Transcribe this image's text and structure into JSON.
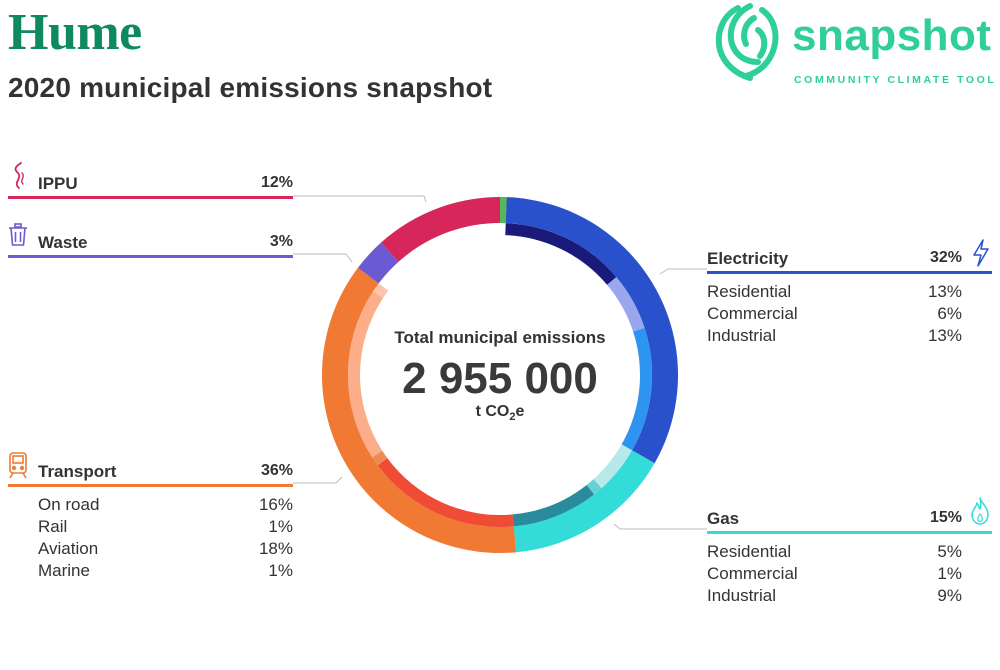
{
  "header": {
    "region": "Hume",
    "subtitle": "2020 municipal emissions snapshot"
  },
  "logo": {
    "word": "snapshot",
    "tagline": "COMMUNITY CLIMATE TOOL",
    "icon": "snapshot-swirl-logo",
    "color": "#2ecf9a"
  },
  "center": {
    "label": "Total municipal emissions",
    "value": "2 955 000",
    "unit_prefix": "t CO",
    "unit_sub": "2",
    "unit_suffix": "e"
  },
  "chart_data": {
    "type": "pie",
    "title": "Total municipal emissions",
    "total": "2 955 000",
    "unit": "t CO2e",
    "sectors": [
      {
        "name": "Electricity",
        "value": 32,
        "label": "32%",
        "color": "#2951cc",
        "icon": "lightning-icon",
        "sub": [
          {
            "name": "Residential",
            "value": 13,
            "label": "13%",
            "color": "#1a1a7a"
          },
          {
            "name": "Commercial",
            "value": 6,
            "label": "6%",
            "color": "#9aa7ee"
          },
          {
            "name": "Industrial",
            "value": 13,
            "label": "13%",
            "color": "#2e94f2"
          }
        ]
      },
      {
        "name": "Gas",
        "value": 15,
        "label": "15%",
        "color": "#33dcd8",
        "icon": "flame-icon",
        "sub": [
          {
            "name": "Residential",
            "value": 5,
            "label": "5%",
            "color": "#b8e8ea"
          },
          {
            "name": "Commercial",
            "value": 1,
            "label": "1%",
            "color": "#66d2d4"
          },
          {
            "name": "Industrial",
            "value": 9,
            "label": "9%",
            "color": "#2a8b9c"
          }
        ]
      },
      {
        "name": "Transport",
        "value": 36,
        "label": "36%",
        "color": "#f07a33",
        "icon": "train-icon",
        "sub": [
          {
            "name": "On road",
            "value": 16,
            "label": "16%",
            "color": "#f04c35"
          },
          {
            "name": "Rail",
            "value": 1,
            "label": "1%",
            "color": "#f08a55"
          },
          {
            "name": "Aviation",
            "value": 18,
            "label": "18%",
            "color": "#fcad8a"
          },
          {
            "name": "Marine",
            "value": 1,
            "label": "1%",
            "color": "#fcc3ad"
          }
        ]
      },
      {
        "name": "Waste",
        "value": 3,
        "label": "3%",
        "color": "#6c5ad2",
        "icon": "trash-icon",
        "sub": []
      },
      {
        "name": "IPPU",
        "value": 12,
        "label": "12%",
        "color": "#d6265a",
        "icon": "smoke-icon",
        "sub": []
      }
    ]
  }
}
